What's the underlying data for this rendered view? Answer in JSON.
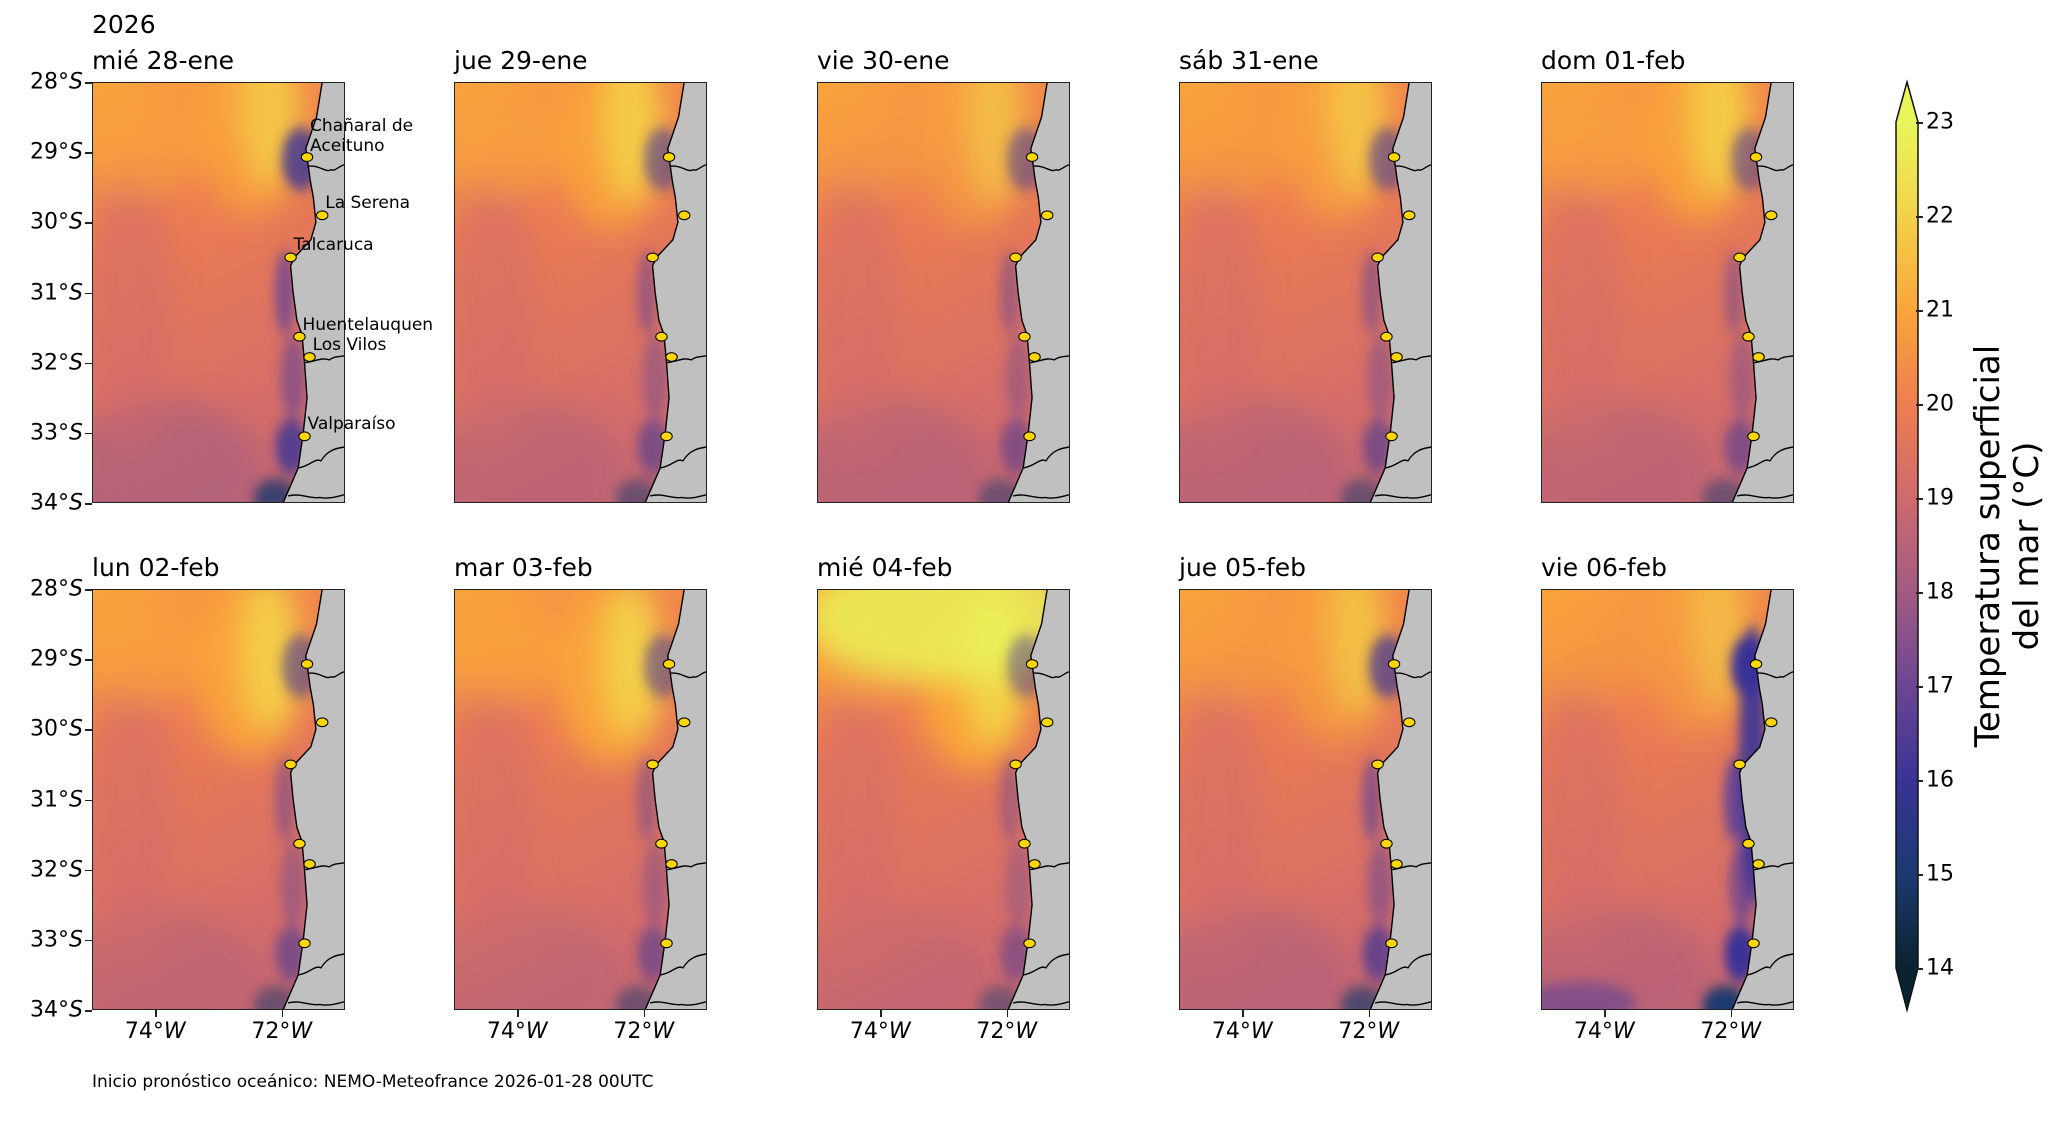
{
  "chart_data": {
    "type": "heatmap",
    "title_year": "2026",
    "panels": [
      {
        "title": "mié 28-ene"
      },
      {
        "title": "jue 29-ene"
      },
      {
        "title": "vie 30-ene"
      },
      {
        "title": "sáb 31-ene"
      },
      {
        "title": "dom 01-feb"
      },
      {
        "title": "lun 02-feb"
      },
      {
        "title": "mar 03-feb"
      },
      {
        "title": "mié 04-feb"
      },
      {
        "title": "jue 05-feb"
      },
      {
        "title": "vie 06-feb"
      }
    ],
    "xlim": [
      -75,
      -71
    ],
    "ylim": [
      -34,
      -28
    ],
    "xticks": [
      {
        "value": -74,
        "num": "74°",
        "hemi": "W"
      },
      {
        "value": -72,
        "num": "72°",
        "hemi": "W"
      }
    ],
    "yticks": [
      {
        "value": -28,
        "num": "28°",
        "hemi": "S"
      },
      {
        "value": -29,
        "num": "29°",
        "hemi": "S"
      },
      {
        "value": -30,
        "num": "30°",
        "hemi": "S"
      },
      {
        "value": -31,
        "num": "31°",
        "hemi": "S"
      },
      {
        "value": -32,
        "num": "32°",
        "hemi": "S"
      },
      {
        "value": -33,
        "num": "33°",
        "hemi": "S"
      },
      {
        "value": -34,
        "num": "34°",
        "hemi": "S"
      }
    ],
    "locations": [
      {
        "name": "Chañaral de",
        "name2": "Aceituno",
        "lon": -71.6,
        "lat": -29.07
      },
      {
        "name": "La Serena",
        "lon": -71.36,
        "lat": -29.9
      },
      {
        "name": "Talcaruca",
        "lon": -71.86,
        "lat": -30.5
      },
      {
        "name": "Huentelauquen",
        "lon": -71.72,
        "lat": -31.63
      },
      {
        "name": "Los Vilos",
        "lon": -71.56,
        "lat": -31.92
      },
      {
        "name": "Valparaíso",
        "lon": -71.64,
        "lat": -33.05
      }
    ],
    "colorbar": {
      "label_line1": "Temperatura superficial",
      "label_line2": "del mar (°C)",
      "range": [
        14,
        23
      ],
      "ticks": [
        "14",
        "15",
        "16",
        "17",
        "18",
        "19",
        "20",
        "21",
        "22",
        "23"
      ],
      "extend": "both"
    },
    "footer": "Inicio pronóstico oceánico: NEMO-Meteofrance 2026-01-28 00UTC"
  },
  "colors": {
    "land": "#c0c0c0",
    "marker": "#ffd700",
    "t14": "#0b2230",
    "t15": "#1b3a70",
    "t16": "#3a3397",
    "t17": "#6c4692",
    "t18": "#a15b82",
    "t19": "#cf6a6e",
    "t20": "#ee7e50",
    "t21": "#f9a53b",
    "t22": "#f3d24a",
    "t23": "#e8f65a"
  }
}
